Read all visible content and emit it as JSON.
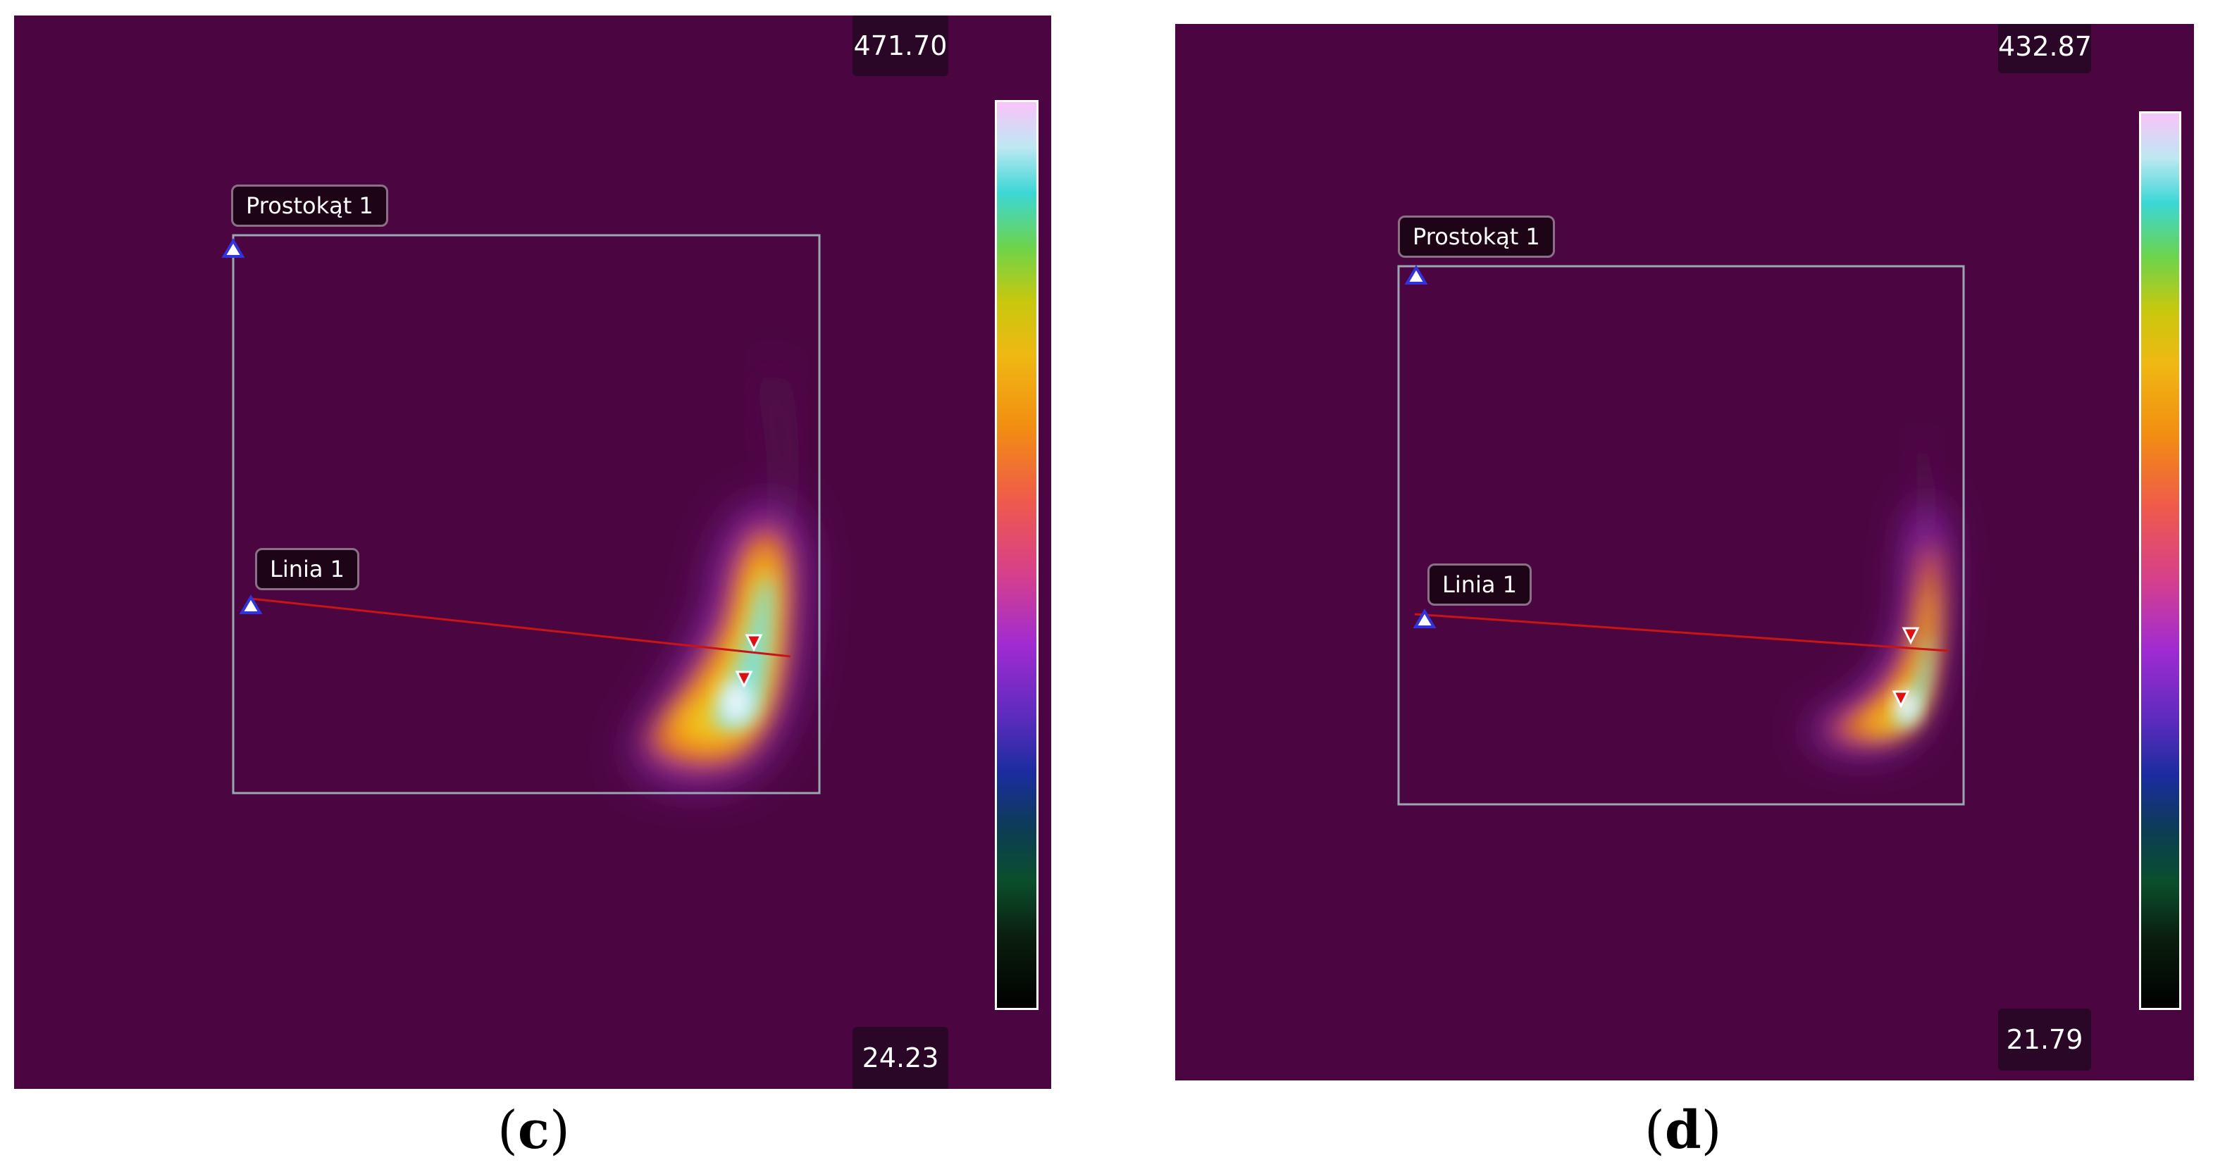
{
  "panels": {
    "c": {
      "caption_open": "(",
      "caption_letter": "c",
      "caption_close": ")",
      "scale_max": "471.70",
      "scale_min": "24.23",
      "rect_label": "Prostokąt 1",
      "line_label": "Linia 1"
    },
    "d": {
      "caption_open": "(",
      "caption_letter": "d",
      "caption_close": ")",
      "scale_max": "432.87",
      "scale_min": "21.79",
      "rect_label": "Prostokąt 1",
      "line_label": "Linia 1"
    }
  },
  "colors": {
    "background": "#4b0642",
    "roi_outline": "#9aa6b2",
    "measure_line": "#c81414",
    "marker_min": "#3333dd",
    "marker_max": "#e01010"
  },
  "palette_name": "iron-like thermal palette (black-blue-magenta-orange-yellow-cyan-white)"
}
